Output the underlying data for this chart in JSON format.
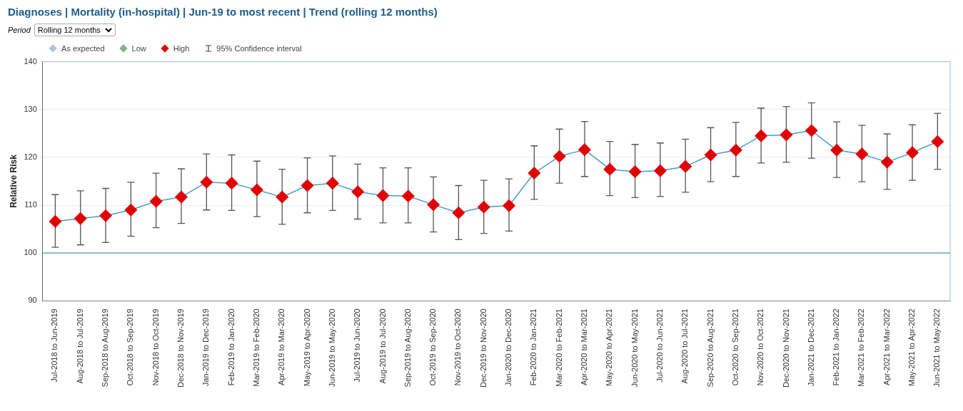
{
  "chart_data": {
    "type": "line",
    "title": "Diagnoses | Mortality (in-hospital) | Jun-19 to most recent | Trend (rolling 12 months)",
    "ylabel": "Relative Risk",
    "categories": [
      "Jul-2018 to Jun-2019",
      "Aug-2018 to Jul-2019",
      "Sep-2018 to Aug-2019",
      "Oct-2018 to Sep-2019",
      "Nov-2018 to Oct-2019",
      "Dec-2018 to Nov-2019",
      "Jan-2019 to Dec-2019",
      "Feb-2019 to Jan-2020",
      "Mar-2019 to Feb-2020",
      "Apr-2019 to Mar-2020",
      "May-2019 to Apr-2020",
      "Jun-2019 to May-2020",
      "Jul-2019 to Jun-2020",
      "Aug-2019 to Jul-2020",
      "Sep-2019 to Aug-2020",
      "Oct-2019 to Sep-2020",
      "Nov-2019 to Oct-2020",
      "Dec-2019 to Nov-2020",
      "Jan-2020 to Dec-2020",
      "Feb-2020 to Jan-2021",
      "Mar-2020 to Feb-2021",
      "Apr-2020 to Mar-2021",
      "May-2020 to Apr-2021",
      "Jun-2020 to May-2021",
      "Jul-2020 to Jun-2021",
      "Aug-2020 to Jul-2021",
      "Sep-2020 to Aug-2021",
      "Oct-2020 to Sep-2021",
      "Nov-2020 to Oct-2021",
      "Dec-2020 to Nov-2021",
      "Jan-2021 to Dec-2021",
      "Feb-2021 to Jan-2022",
      "Mar-2021 to Feb-2022",
      "Apr-2021 to Mar-2022",
      "May-2021 to Apr-2022",
      "Jun-2021 to May-2022"
    ],
    "series": [
      {
        "name": "As expected",
        "color": "#a9c4dc",
        "values": [
          null,
          null,
          null,
          null,
          null,
          null,
          null,
          null,
          null,
          null,
          null,
          null,
          null,
          null,
          null,
          null,
          null,
          null,
          null,
          null,
          null,
          null,
          null,
          null,
          null,
          null,
          null,
          null,
          null,
          null,
          null,
          null,
          null,
          null,
          null,
          null
        ]
      },
      {
        "name": "Low",
        "color": "#7fb77e",
        "values": [
          null,
          null,
          null,
          null,
          null,
          null,
          null,
          null,
          null,
          null,
          null,
          null,
          null,
          null,
          null,
          null,
          null,
          null,
          null,
          null,
          null,
          null,
          null,
          null,
          null,
          null,
          null,
          null,
          null,
          null,
          null,
          null,
          null,
          null,
          null,
          null
        ]
      },
      {
        "name": "High",
        "color": "#e00000",
        "values": [
          106.6,
          107.2,
          107.8,
          109.0,
          110.8,
          111.7,
          114.8,
          114.6,
          113.2,
          111.7,
          114.1,
          114.6,
          112.8,
          112.0,
          111.9,
          110.1,
          108.4,
          109.6,
          109.9,
          116.7,
          120.2,
          121.6,
          117.5,
          117.0,
          117.2,
          118.1,
          120.5,
          121.5,
          124.5,
          124.7,
          125.6,
          121.5,
          120.7,
          119.0,
          121.0,
          123.3
        ],
        "errors": [
          [
            101.2,
            112.2
          ],
          [
            101.7,
            113.0
          ],
          [
            102.2,
            113.5
          ],
          [
            103.5,
            114.8
          ],
          [
            105.3,
            116.7
          ],
          [
            106.2,
            117.6
          ],
          [
            109.0,
            120.7
          ],
          [
            108.9,
            120.5
          ],
          [
            107.6,
            119.2
          ],
          [
            106.0,
            117.5
          ],
          [
            108.4,
            119.9
          ],
          [
            108.9,
            120.3
          ],
          [
            107.1,
            118.6
          ],
          [
            106.3,
            117.8
          ],
          [
            106.3,
            117.8
          ],
          [
            104.4,
            115.9
          ],
          [
            102.8,
            114.1
          ],
          [
            104.1,
            115.2
          ],
          [
            104.6,
            115.5
          ],
          [
            111.2,
            122.4
          ],
          [
            114.6,
            125.9
          ],
          [
            116.0,
            127.5
          ],
          [
            112.0,
            123.3
          ],
          [
            111.6,
            122.7
          ],
          [
            111.8,
            123.0
          ],
          [
            112.7,
            123.8
          ],
          [
            114.9,
            126.2
          ],
          [
            116.0,
            127.3
          ],
          [
            118.8,
            130.3
          ],
          [
            119.0,
            130.6
          ],
          [
            119.8,
            131.4
          ],
          [
            115.8,
            127.4
          ],
          [
            114.9,
            126.7
          ],
          [
            113.3,
            124.9
          ],
          [
            115.2,
            126.8
          ],
          [
            117.5,
            129.2
          ]
        ]
      }
    ],
    "ylim": [
      90,
      140
    ],
    "yticks": [
      90,
      100,
      110,
      120,
      130,
      140
    ],
    "grid": "y",
    "legend": "top left",
    "marker": "diamond",
    "line_style": "solid",
    "ref_lines": [
      {
        "axis": "y",
        "value": 100,
        "color": "#4f97ad"
      }
    ],
    "annotations": [
      "Period",
      "Rolling 12 months",
      "95% Confidence interval"
    ]
  }
}
